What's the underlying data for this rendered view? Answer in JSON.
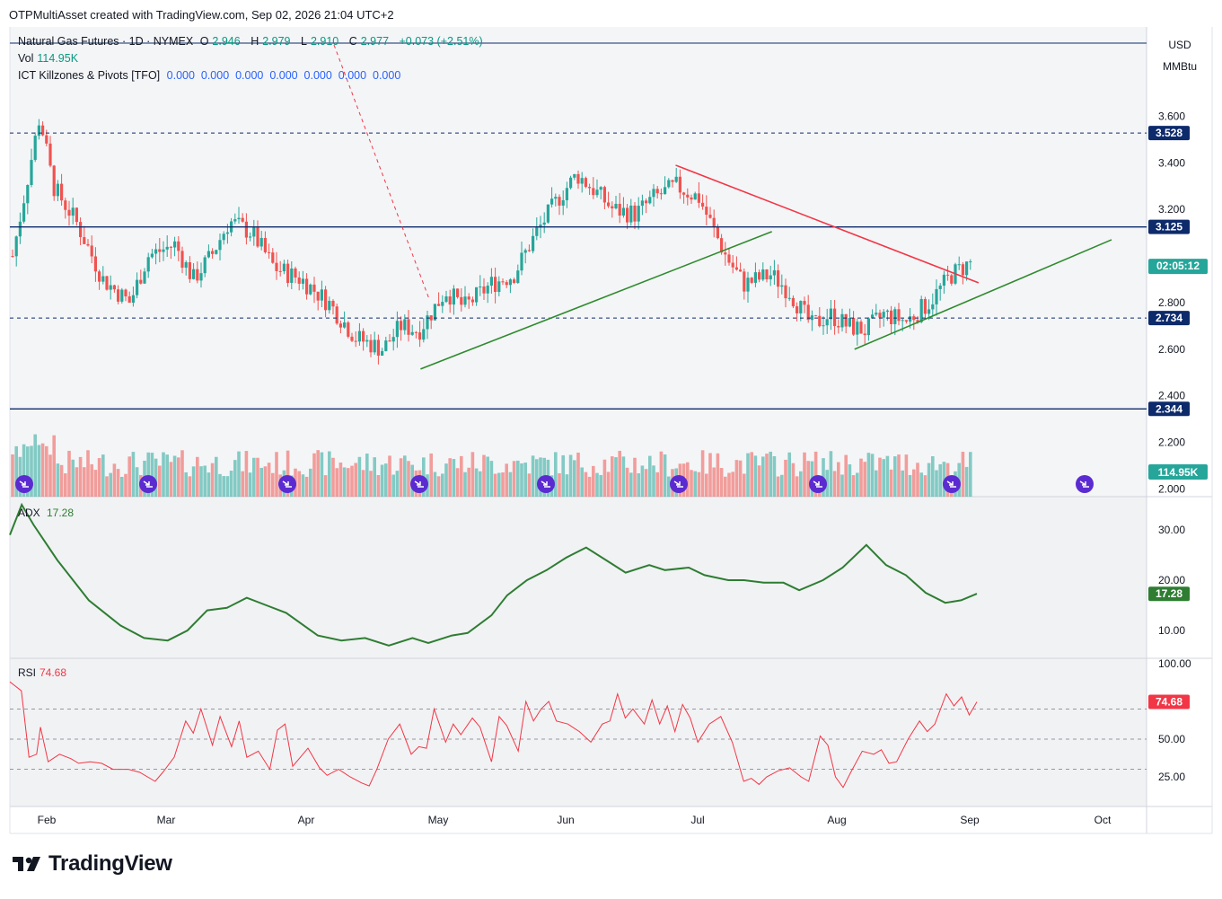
{
  "header": {
    "attribution": "OTPMultiAsset created with TradingView.com, Sep 02, 2026 21:04 UTC+2"
  },
  "legend": {
    "symbol": "Natural Gas Futures · 1D · NYMEX",
    "o_label": "O",
    "o_val": "2.946",
    "h_label": "H",
    "h_val": "2.979",
    "l_label": "L",
    "l_val": "2.910",
    "c_label": "C",
    "c_val": "2.977",
    "change": "+0.073 (+2.51%)",
    "vol_label": "Vol",
    "vol_val": "114.95K",
    "ict_label": "ICT Killzones & Pivots [TFO]",
    "ict_vals": "0.000  0.000  0.000  0.000  0.000  0.000  0.000"
  },
  "axis": {
    "currency": "USD",
    "unit": "MMBtu"
  },
  "colors": {
    "up": "#26a69a",
    "down": "#ef5350",
    "adx": "#2e7d32",
    "rsi": "#f23645",
    "level": "#0d2a6b",
    "trend_up": "#2e8b2e",
    "trend_down": "#f23645"
  },
  "chart_data": [
    {
      "type": "candlestick",
      "x_ticks": [
        "Feb",
        "Mar",
        "Apr",
        "May",
        "Jun",
        "Jul",
        "Aug",
        "Sep",
        "Oct"
      ],
      "y_ticks": [
        "3.600",
        "3.400",
        "3.200",
        "2.800",
        "2.600",
        "2.400",
        "2.200",
        "2.000"
      ],
      "levels": [
        {
          "label": "3.528",
          "value": 3.528,
          "style": "dashed"
        },
        {
          "label": "3.125",
          "value": 3.125,
          "style": "solid"
        },
        {
          "label": "2.734",
          "value": 2.734,
          "style": "dashed"
        },
        {
          "label": "2.344",
          "value": 2.344,
          "style": "solid"
        }
      ],
      "countdown_label": "02:05:12",
      "last_price": 2.977,
      "volume_label": "114.95K",
      "trendlines": [
        {
          "name": "rising-1",
          "points": [
            [
              "Apr 27",
              2.515
            ],
            [
              "Jul 17",
              3.105
            ]
          ]
        },
        {
          "name": "falling",
          "points": [
            [
              "Jun 26",
              3.39
            ],
            [
              "Sep 03",
              2.885
            ]
          ]
        },
        {
          "name": "rising-2",
          "points": [
            [
              "Aug 05",
              2.6
            ],
            [
              "Oct 03",
              3.07
            ]
          ]
        }
      ]
    },
    {
      "type": "line",
      "name": "ADX",
      "value_label": "17.28",
      "y_ticks": [
        "30.00",
        "20.00",
        "10.00"
      ],
      "ylim": [
        4,
        36
      ],
      "anchors": [
        [
          0,
          29
        ],
        [
          3,
          35
        ],
        [
          6,
          31
        ],
        [
          12,
          24
        ],
        [
          20,
          16
        ],
        [
          28,
          11
        ],
        [
          34,
          8.5
        ],
        [
          40,
          8
        ],
        [
          45,
          10
        ],
        [
          50,
          14
        ],
        [
          55,
          14.5
        ],
        [
          60,
          16.5
        ],
        [
          65,
          15
        ],
        [
          70,
          13.5
        ],
        [
          78,
          9
        ],
        [
          84,
          8
        ],
        [
          90,
          8.5
        ],
        [
          96,
          7
        ],
        [
          102,
          8.5
        ],
        [
          106,
          7.5
        ],
        [
          112,
          9
        ],
        [
          116,
          9.5
        ],
        [
          122,
          13
        ],
        [
          126,
          17
        ],
        [
          131,
          20
        ],
        [
          136,
          22
        ],
        [
          141,
          24.5
        ],
        [
          146,
          26.5
        ],
        [
          152,
          23.5
        ],
        [
          156,
          21.5
        ],
        [
          162,
          23
        ],
        [
          166,
          22
        ],
        [
          172,
          22.5
        ],
        [
          176,
          21
        ],
        [
          182,
          20
        ],
        [
          186,
          20
        ],
        [
          191,
          19.5
        ],
        [
          196,
          19.5
        ],
        [
          200,
          18
        ],
        [
          206,
          20
        ],
        [
          211,
          22.5
        ],
        [
          217,
          27
        ],
        [
          222,
          23
        ],
        [
          227,
          21
        ],
        [
          232,
          17.5
        ],
        [
          237,
          15.5
        ],
        [
          241,
          16
        ],
        [
          245,
          17.3
        ]
      ]
    },
    {
      "type": "line",
      "name": "RSI",
      "value_label": "74.68",
      "y_ticks": [
        "100.00",
        "50.00",
        "25.00"
      ],
      "ylim": [
        10,
        102
      ],
      "levels": [
        70,
        50,
        30
      ],
      "anchors": [
        [
          0,
          88
        ],
        [
          3,
          82
        ],
        [
          5,
          38
        ],
        [
          7,
          40
        ],
        [
          8,
          58
        ],
        [
          10,
          35
        ],
        [
          13,
          40
        ],
        [
          16,
          37
        ],
        [
          18,
          34
        ],
        [
          21,
          35
        ],
        [
          24,
          34
        ],
        [
          27,
          30
        ],
        [
          31,
          30
        ],
        [
          34,
          28
        ],
        [
          38,
          22
        ],
        [
          40,
          28
        ],
        [
          43,
          38
        ],
        [
          46,
          62
        ],
        [
          48,
          54
        ],
        [
          50,
          70
        ],
        [
          53,
          46
        ],
        [
          55,
          65
        ],
        [
          58,
          45
        ],
        [
          60,
          62
        ],
        [
          62,
          38
        ],
        [
          65,
          42
        ],
        [
          68,
          30
        ],
        [
          70,
          56
        ],
        [
          72,
          60
        ],
        [
          74,
          32
        ],
        [
          76,
          38
        ],
        [
          78,
          44
        ],
        [
          81,
          31
        ],
        [
          83,
          26
        ],
        [
          86,
          30
        ],
        [
          89,
          25
        ],
        [
          92,
          21
        ],
        [
          94,
          19
        ],
        [
          96,
          30
        ],
        [
          99,
          50
        ],
        [
          102,
          60
        ],
        [
          105,
          40
        ],
        [
          107,
          45
        ],
        [
          109,
          44
        ],
        [
          111,
          70
        ],
        [
          114,
          48
        ],
        [
          116,
          60
        ],
        [
          118,
          53
        ],
        [
          121,
          64
        ],
        [
          123,
          58
        ],
        [
          126,
          35
        ],
        [
          128,
          65
        ],
        [
          130,
          59
        ],
        [
          133,
          42
        ],
        [
          135,
          75
        ],
        [
          137,
          62
        ],
        [
          139,
          70
        ],
        [
          141,
          75
        ],
        [
          143,
          62
        ],
        [
          146,
          60
        ],
        [
          149,
          55
        ],
        [
          152,
          48
        ],
        [
          155,
          60
        ],
        [
          157,
          62
        ],
        [
          159,
          80
        ],
        [
          161,
          64
        ],
        [
          163,
          70
        ],
        [
          166,
          60
        ],
        [
          168,
          76
        ],
        [
          170,
          60
        ],
        [
          172,
          72
        ],
        [
          174,
          55
        ],
        [
          176,
          73
        ],
        [
          178,
          64
        ],
        [
          180,
          48
        ],
        [
          183,
          60
        ],
        [
          186,
          65
        ],
        [
          189,
          48
        ],
        [
          192,
          22
        ],
        [
          194,
          24
        ],
        [
          196,
          20
        ],
        [
          198,
          25
        ],
        [
          201,
          29
        ],
        [
          204,
          31
        ],
        [
          207,
          25
        ],
        [
          209,
          22
        ],
        [
          212,
          52
        ],
        [
          214,
          46
        ],
        [
          216,
          25
        ],
        [
          218,
          18
        ],
        [
          220,
          28
        ],
        [
          223,
          42
        ],
        [
          226,
          40
        ],
        [
          228,
          43
        ],
        [
          230,
          34
        ],
        [
          232,
          35
        ],
        [
          235,
          50
        ],
        [
          238,
          62
        ],
        [
          240,
          55
        ],
        [
          242,
          60
        ],
        [
          245,
          80
        ],
        [
          247,
          72
        ],
        [
          249,
          78
        ],
        [
          251,
          66
        ],
        [
          253,
          74.68
        ]
      ]
    }
  ],
  "logo_text": "TradingView"
}
